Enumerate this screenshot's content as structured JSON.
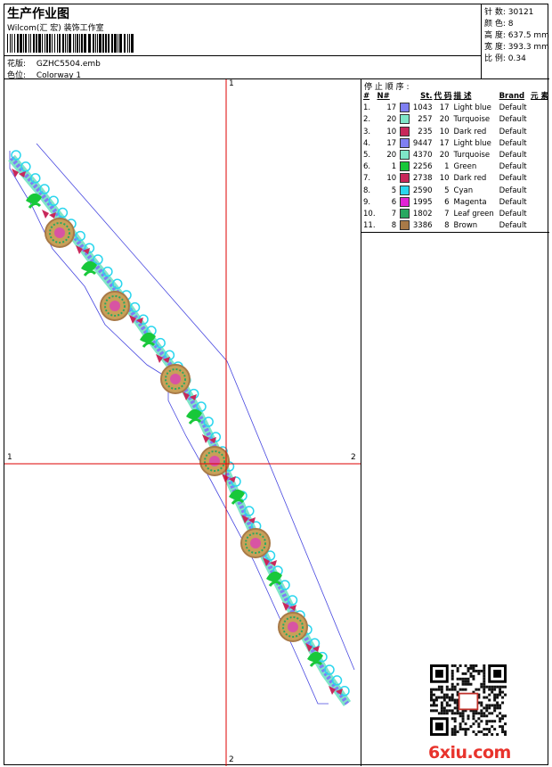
{
  "header": {
    "title": "生产作业图",
    "company": "Wilcom(汇 宏) 装饰工作室",
    "file_label": "花版:",
    "file_value": "GZHC5504.emb",
    "colorway_label": "色位:",
    "colorway_value": "Colorway 1"
  },
  "stats": [
    {
      "label": "针 数:",
      "value": "30121"
    },
    {
      "label": "颜 色:",
      "value": "8"
    },
    {
      "label": "高 度:",
      "value": "637.5 mm"
    },
    {
      "label": "宽 度:",
      "value": "393.3 mm"
    },
    {
      "label": "比 例:",
      "value": "0.34"
    }
  ],
  "sequence": {
    "title": "停 止 顺 序 :",
    "headers": [
      "#",
      "N#",
      "St.",
      "代 码",
      "描 述",
      "Brand",
      "元 素"
    ],
    "rows": [
      {
        "idx": "1.",
        "n": "17",
        "color": "#7f7ff2",
        "st": "1043",
        "code": "17",
        "desc": "Light blue",
        "brand": "Default"
      },
      {
        "idx": "2.",
        "n": "20",
        "color": "#7fe6c8",
        "st": "257",
        "code": "20",
        "desc": "Turquoise",
        "brand": "Default"
      },
      {
        "idx": "3.",
        "n": "10",
        "color": "#c8285a",
        "st": "235",
        "code": "10",
        "desc": "Dark red",
        "brand": "Default"
      },
      {
        "idx": "4.",
        "n": "17",
        "color": "#7f7ff2",
        "st": "9447",
        "code": "17",
        "desc": "Light blue",
        "brand": "Default"
      },
      {
        "idx": "5.",
        "n": "20",
        "color": "#7fe6c8",
        "st": "4370",
        "code": "20",
        "desc": "Turquoise",
        "brand": "Default"
      },
      {
        "idx": "6.",
        "n": "1",
        "color": "#18c83a",
        "st": "2256",
        "code": "1",
        "desc": "Green",
        "brand": "Default"
      },
      {
        "idx": "7.",
        "n": "10",
        "color": "#c8285a",
        "st": "2738",
        "code": "10",
        "desc": "Dark red",
        "brand": "Default"
      },
      {
        "idx": "8.",
        "n": "5",
        "color": "#2ad6ee",
        "st": "2590",
        "code": "5",
        "desc": "Cyan",
        "brand": "Default"
      },
      {
        "idx": "9.",
        "n": "6",
        "color": "#e222d6",
        "st": "1995",
        "code": "6",
        "desc": "Magenta",
        "brand": "Default"
      },
      {
        "idx": "10.",
        "n": "7",
        "color": "#28a860",
        "st": "1802",
        "code": "7",
        "desc": "Leaf green",
        "brand": "Default"
      },
      {
        "idx": "11.",
        "n": "8",
        "color": "#a87a48",
        "st": "3386",
        "code": "8",
        "desc": "Brown",
        "brand": "Default"
      }
    ]
  },
  "axes": {
    "v_top": "1",
    "v_bottom": "2",
    "h_left": "1",
    "h_right": "2"
  },
  "watermark": "6xiu.com"
}
